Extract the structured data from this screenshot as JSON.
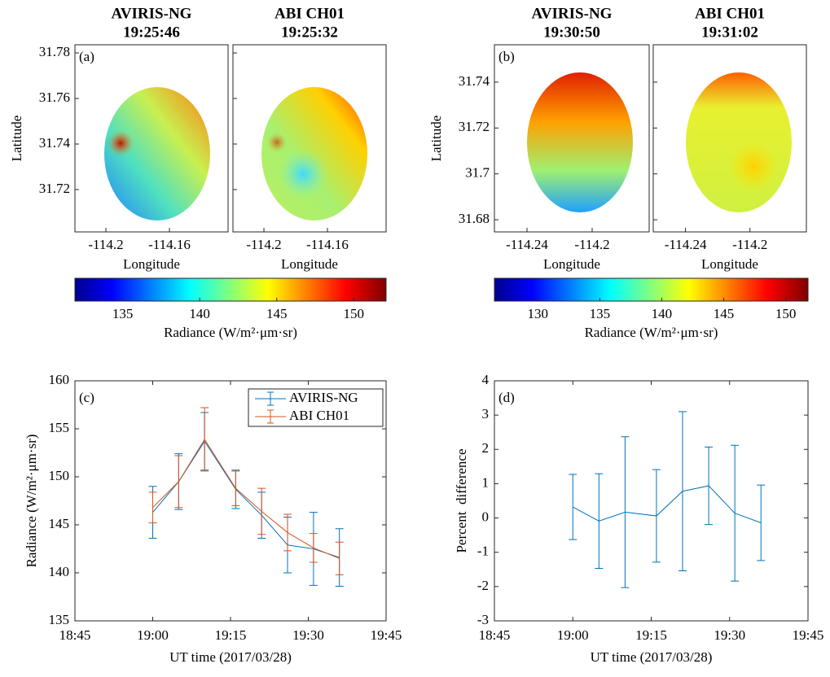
{
  "chart_data": [
    {
      "type": "map",
      "label": "(a)",
      "panels": [
        {
          "title": "AVIRIS-NG",
          "time": "19:25:46"
        },
        {
          "title": "ABI CH01",
          "time": "19:25:32"
        }
      ],
      "x_label": "Longitude",
      "y_label": "Latitude",
      "xlim": [
        -114.2195,
        -114.1231
      ],
      "xticks": [
        -114.2,
        -114.16
      ],
      "ylim": [
        31.7014,
        31.7836
      ],
      "yticks": [
        31.72,
        31.74,
        31.76,
        31.78
      ],
      "colorbar": {
        "label": "Radiance (W/m²·μm·sr)",
        "lim": [
          131.9,
          152.1
        ],
        "ticks": [
          135,
          140,
          145,
          150
        ]
      }
    },
    {
      "type": "map",
      "label": "(b)",
      "panels": [
        {
          "title": "AVIRIS-NG",
          "time": "19:30:50"
        },
        {
          "title": "ABI CH01",
          "time": "19:31:02"
        }
      ],
      "x_label": "Longitude",
      "y_label": "Latitude",
      "xlim": [
        -114.26,
        -114.165
      ],
      "xticks": [
        -114.24,
        -114.2
      ],
      "ylim": [
        31.6747,
        31.7563
      ],
      "yticks": [
        31.68,
        31.7,
        31.72,
        31.74
      ],
      "colorbar": {
        "label": "Radiance (W/m²·μm·sr)",
        "lim": [
          126.5,
          151.8
        ],
        "ticks": [
          130,
          135,
          140,
          145,
          150
        ]
      }
    },
    {
      "type": "line",
      "label": "(c)",
      "x_label": "UT time (2017/03/28)",
      "y_label": "Radiance (W/m²·μm·sr)",
      "x": [
        "19:00",
        "19:05",
        "19:10",
        "19:16",
        "19:21",
        "19:26",
        "19:31",
        "19:36"
      ],
      "xlim": [
        "18:45",
        "19:45"
      ],
      "xticks": [
        "18:45",
        "19:00",
        "19:15",
        "19:30",
        "19:45"
      ],
      "ylim": [
        135,
        160
      ],
      "yticks": [
        135,
        140,
        145,
        150,
        155,
        160
      ],
      "legend": "upper right",
      "series": [
        {
          "name": "AVIRIS-NG",
          "color": "#0072bd",
          "values": [
            146.3,
            149.5,
            153.7,
            148.7,
            146.0,
            142.9,
            142.5,
            141.6
          ],
          "errors": [
            2.7,
            2.9,
            3.0,
            2.0,
            2.4,
            2.9,
            3.8,
            3.0
          ]
        },
        {
          "name": "ABI CH01",
          "color": "#d95319",
          "values": [
            146.8,
            149.5,
            153.9,
            148.8,
            146.4,
            144.2,
            142.6,
            141.5
          ],
          "errors": [
            1.6,
            2.7,
            3.3,
            1.8,
            2.4,
            1.9,
            1.5,
            1.7
          ]
        }
      ]
    },
    {
      "type": "line",
      "label": "(d)",
      "x_label": "UT time (2017/03/28)",
      "y_label": "Percent  difference",
      "x": [
        "19:00",
        "19:05",
        "19:10",
        "19:16",
        "19:21",
        "19:26",
        "19:31",
        "19:36"
      ],
      "xlim": [
        "18:45",
        "19:45"
      ],
      "xticks": [
        "18:45",
        "19:00",
        "19:15",
        "19:30",
        "19:45"
      ],
      "ylim": [
        -3,
        4
      ],
      "yticks": [
        -3,
        -2,
        -1,
        0,
        1,
        2,
        3,
        4
      ],
      "series": [
        {
          "color": "#0072bd",
          "values": [
            0.32,
            -0.09,
            0.17,
            0.06,
            0.78,
            0.94,
            0.14,
            -0.14
          ],
          "errors": [
            0.95,
            1.38,
            2.2,
            1.35,
            2.32,
            1.13,
            1.98,
            1.1
          ]
        }
      ]
    }
  ]
}
